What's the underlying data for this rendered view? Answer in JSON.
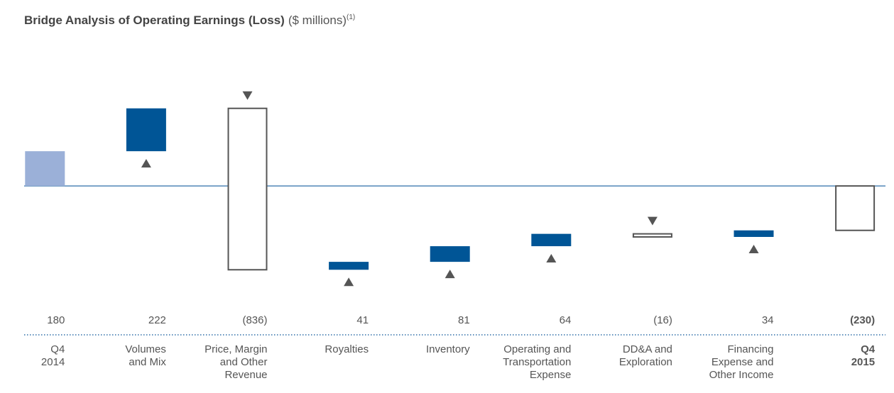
{
  "chart_data": {
    "type": "waterfall",
    "title": "Bridge Analysis of Operating Earnings (Loss)",
    "subtitle": "($ millions)",
    "footnote_marker": "(1)",
    "categories": [
      [
        "Q4",
        "2014"
      ],
      [
        "Volumes",
        "and Mix"
      ],
      [
        "Price, Margin",
        "and Other",
        "Revenue"
      ],
      [
        "Royalties"
      ],
      [
        "Inventory"
      ],
      [
        "Operating and",
        "Transportation",
        "Expense"
      ],
      [
        "DD&A and",
        "Exploration"
      ],
      [
        "Financing",
        "Expense and",
        "Other Income"
      ],
      [
        "Q4",
        "2015"
      ]
    ],
    "values": [
      180,
      222,
      -836,
      41,
      81,
      64,
      -16,
      34,
      -230
    ],
    "value_labels": [
      "180",
      "222",
      "(836)",
      "41",
      "81",
      "64",
      "(16)",
      "34",
      "(230)"
    ],
    "measure": [
      "total",
      "relative",
      "relative",
      "relative",
      "relative",
      "relative",
      "relative",
      "relative",
      "total"
    ],
    "colors": {
      "start_total": "#9bb0d8",
      "increase": "#005596",
      "decrease": "#ffffff",
      "end_total": "#ffffff"
    },
    "ylim": [
      -580,
      706
    ]
  }
}
